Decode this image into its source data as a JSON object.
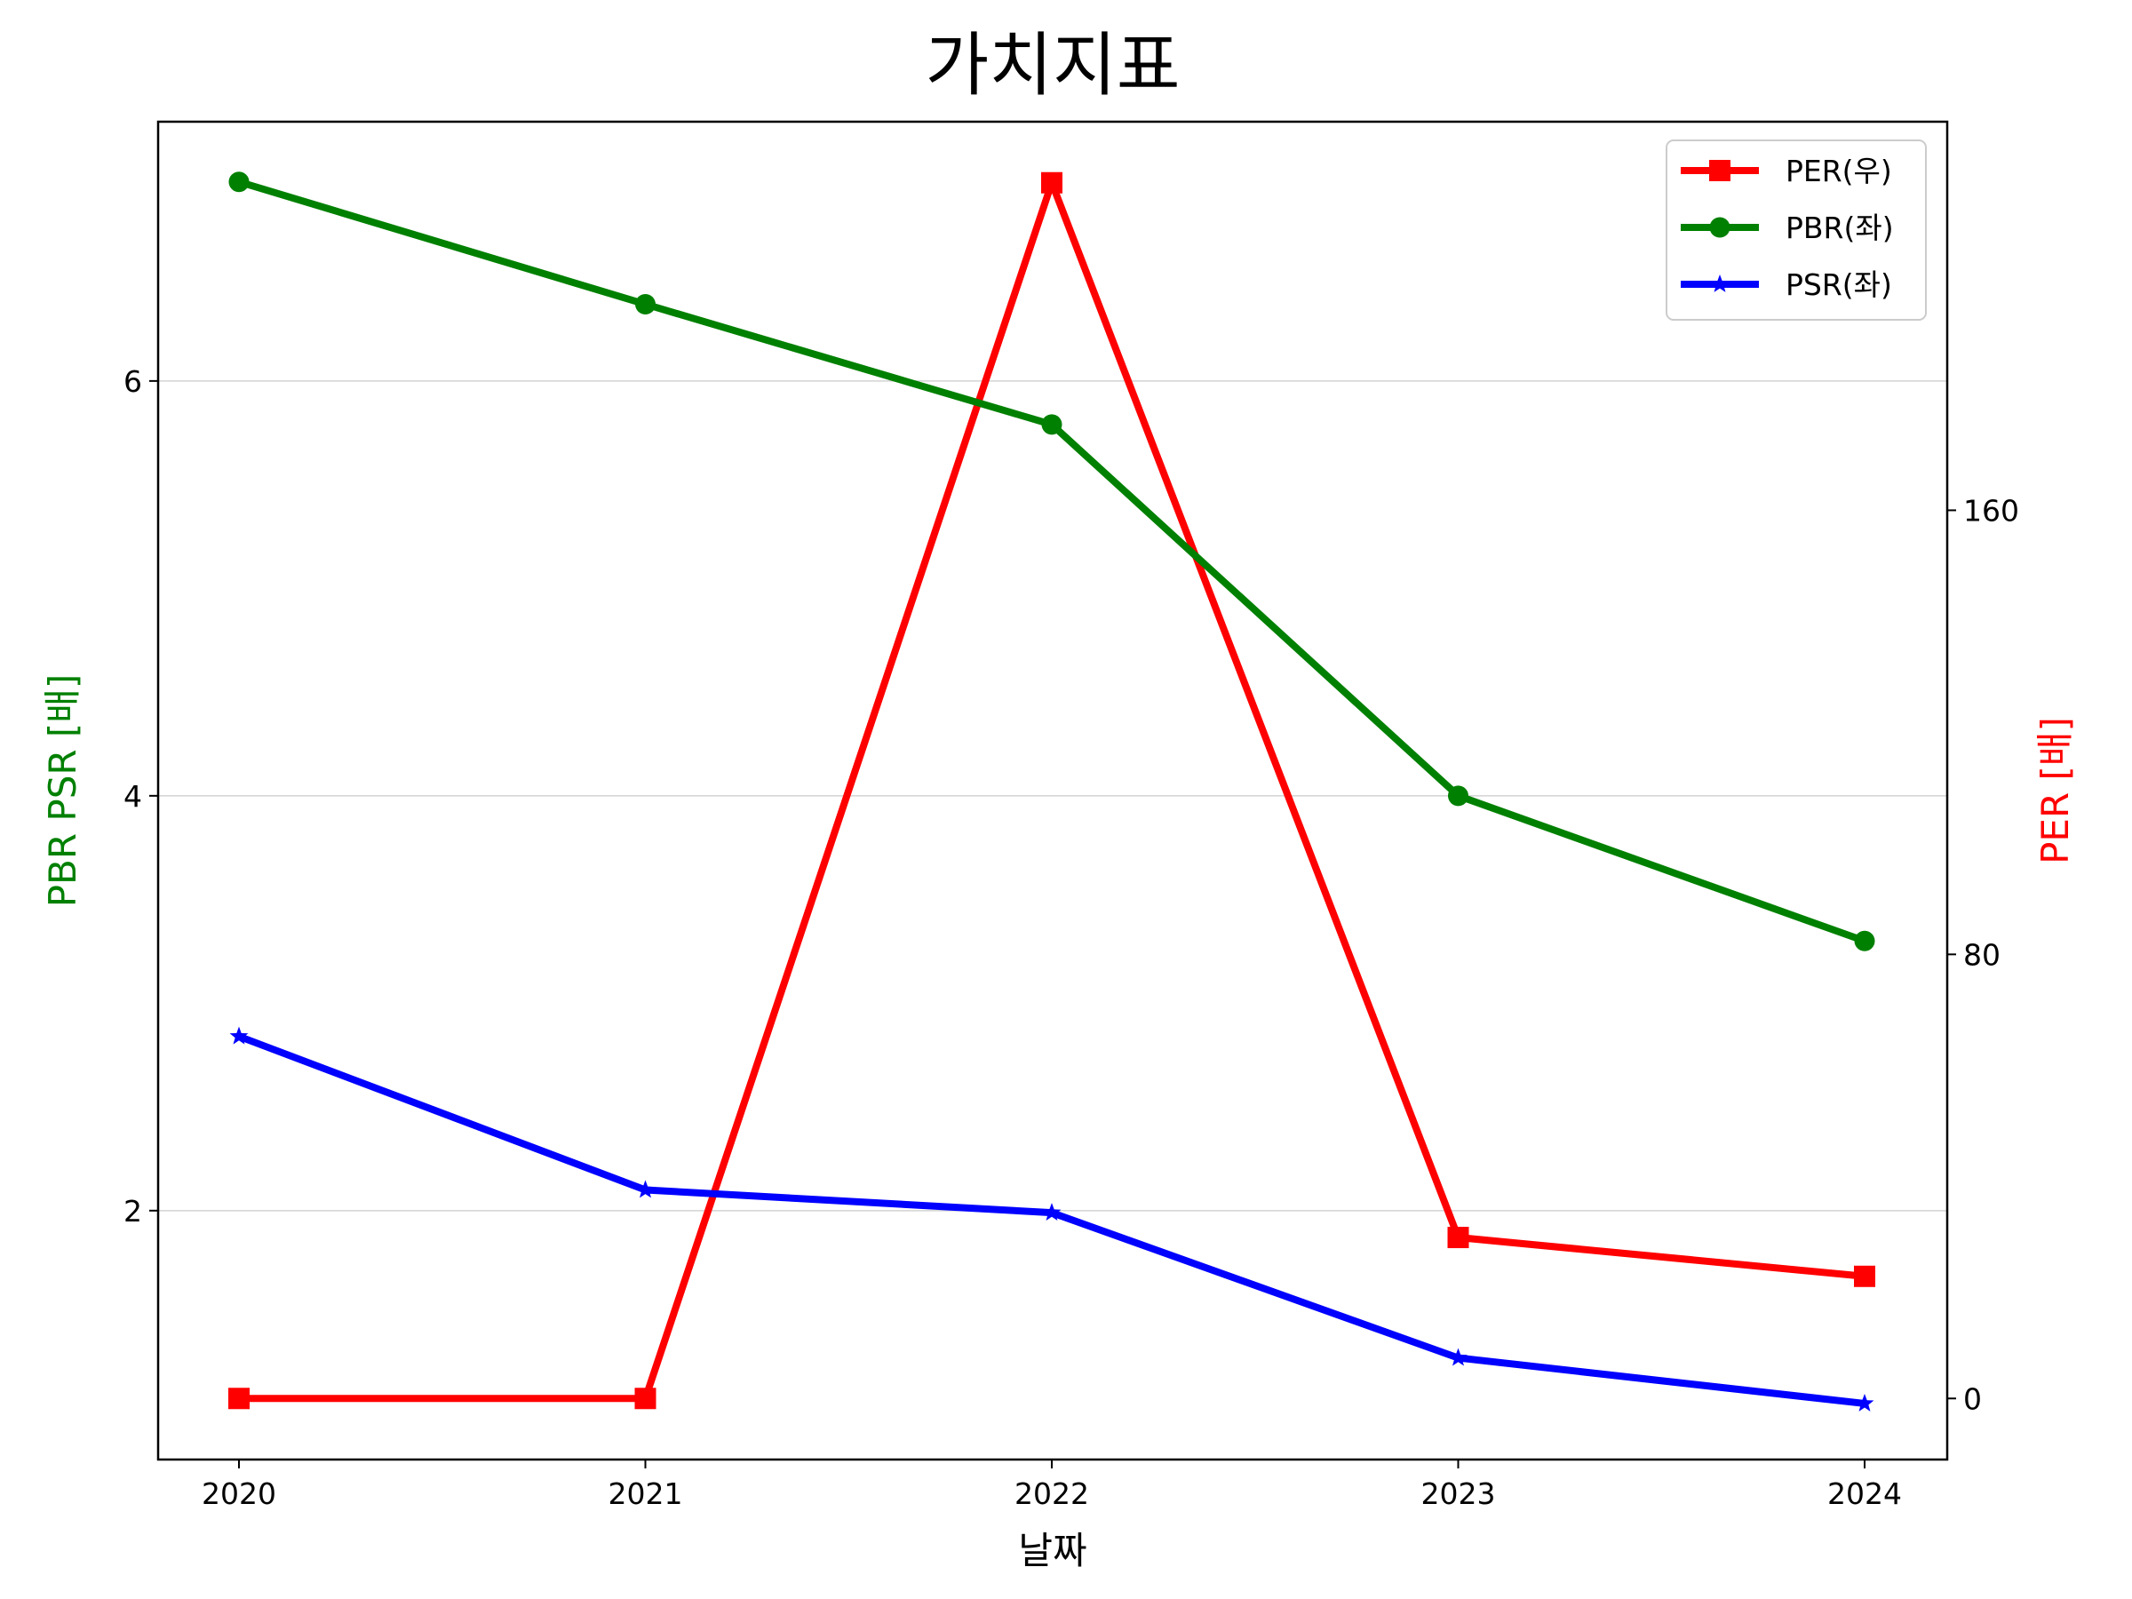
{
  "chart_data": {
    "type": "line",
    "title": "가치지표",
    "xlabel": "날짜",
    "ylabel_left": "PBR PSR [배]",
    "ylabel_right": "PER [배]",
    "categories": [
      "2020",
      "2021",
      "2022",
      "2023",
      "2024"
    ],
    "left_axis": {
      "ylim": [
        0.8,
        7.25
      ],
      "ticks": [
        2,
        4,
        6
      ],
      "tick_labels": [
        "2",
        "4",
        "6"
      ],
      "label_color": "#008000"
    },
    "right_axis": {
      "ylim": [
        -11,
        230
      ],
      "ticks": [
        0,
        80,
        160
      ],
      "tick_labels": [
        "0",
        "80",
        "160"
      ],
      "label_color": "#ff0000"
    },
    "grid": {
      "horizontal": true,
      "axis": "left"
    },
    "legend_position": "top-right",
    "series": [
      {
        "name": "PER(우)",
        "axis": "right",
        "color": "#ff0000",
        "marker": "square",
        "values": [
          0,
          0,
          219,
          29,
          22
        ]
      },
      {
        "name": "PBR(좌)",
        "axis": "left",
        "color": "#008000",
        "marker": "circle",
        "values": [
          6.96,
          6.37,
          5.79,
          4.0,
          3.3
        ]
      },
      {
        "name": "PSR(좌)",
        "axis": "left",
        "color": "#0000ff",
        "marker": "star",
        "values": [
          2.84,
          2.1,
          1.99,
          1.29,
          1.07
        ]
      }
    ]
  }
}
